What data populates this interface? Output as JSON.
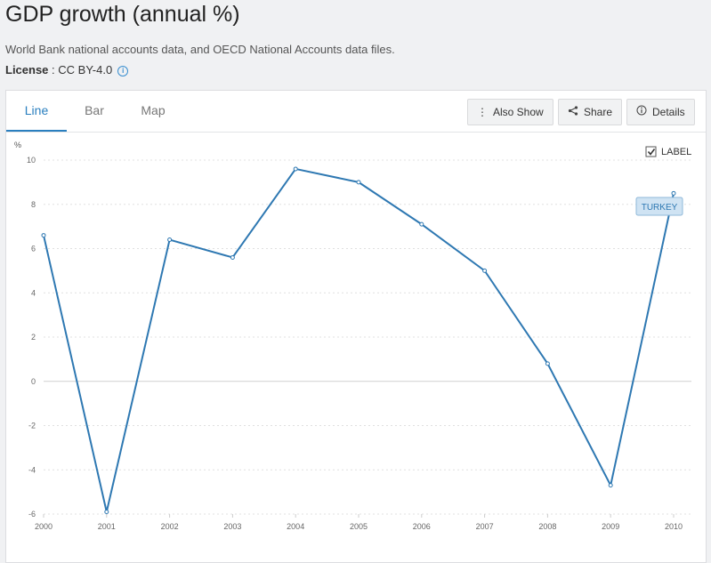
{
  "header": {
    "title": "GDP growth (annual %)",
    "source": "World Bank national accounts data, and OECD National Accounts data files.",
    "license_label": "License",
    "license_value": " : CC BY-4.0",
    "info_glyph": "i"
  },
  "tabs": [
    {
      "label": "Line",
      "active": true
    },
    {
      "label": "Bar",
      "active": false
    },
    {
      "label": "Map",
      "active": false
    }
  ],
  "actions": {
    "also_show": "Also Show",
    "share": "Share",
    "details": "Details"
  },
  "label_toggle": {
    "text": "LABEL",
    "checked": true
  },
  "colors": {
    "accent": "#2a7fbf",
    "line": "#2e78b2",
    "grid": "#e0e0e0"
  },
  "chart_data": {
    "type": "line",
    "x": [
      2000,
      2001,
      2002,
      2003,
      2004,
      2005,
      2006,
      2007,
      2008,
      2009,
      2010
    ],
    "series": [
      {
        "name": "TURKEY",
        "values": [
          6.6,
          -5.9,
          6.4,
          5.6,
          9.6,
          9.0,
          7.1,
          5.0,
          0.8,
          -4.7,
          8.5
        ]
      }
    ],
    "ylabel": "%",
    "ylim": [
      -6,
      10
    ],
    "yticks": [
      -6,
      -4,
      -2,
      0,
      2,
      4,
      6,
      8,
      10
    ],
    "xlim": [
      2000,
      2010
    ],
    "grid": true,
    "legend": "label at line end"
  }
}
